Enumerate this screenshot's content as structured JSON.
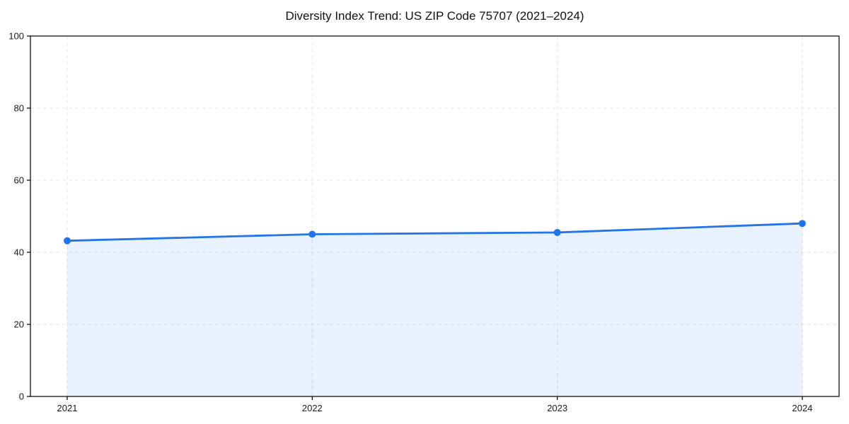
{
  "chart_data": {
    "type": "area",
    "title": "Diversity Index Trend: US ZIP Code 75707 (2021–2024)",
    "categories": [
      "2021",
      "2022",
      "2023",
      "2024"
    ],
    "series": [
      {
        "name": "Diversity Index",
        "values": [
          43.2,
          45.0,
          45.5,
          48.0
        ]
      }
    ],
    "xlabel": "",
    "ylabel": "",
    "ylim": [
      0,
      100
    ],
    "yticks": [
      0,
      20,
      40,
      60,
      80,
      100
    ],
    "grid": true,
    "grid_style": "dashed",
    "legend": "none",
    "line_color": "#2374e8",
    "fill_color": "rgba(35, 116, 232, 0.10)",
    "marker": "circle",
    "marker_radius": 5
  }
}
